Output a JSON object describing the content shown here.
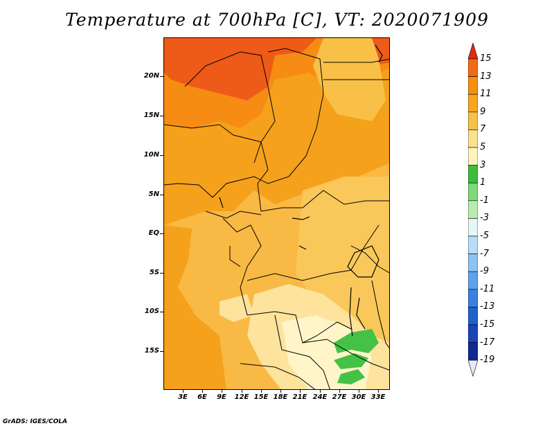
{
  "title": "Temperature at 700hPa [C], VT: 2020071909",
  "credit": "GrADS: IGES/COLA",
  "map": {
    "variable": "temperature",
    "level": "700hPa",
    "units": "C",
    "lon_range": [
      0,
      35
    ],
    "lat_range": [
      -20,
      25
    ],
    "lat_labels": [
      "20N",
      "15N",
      "10N",
      "5N",
      "EQ",
      "5S",
      "10S",
      "15S"
    ],
    "lon_labels": [
      "3E",
      "6E",
      "9E",
      "12E",
      "15E",
      "18E",
      "21E",
      "24E",
      "27E",
      "30E",
      "33E"
    ]
  },
  "colorbar": {
    "labels": [
      "15",
      "13",
      "11",
      "9",
      "7",
      "5",
      "3",
      "1",
      "-1",
      "-3",
      "-5",
      "-7",
      "-9",
      "-11",
      "-13",
      "-15",
      "-17",
      "-19"
    ],
    "colors": [
      "#e8451a",
      "#f26a14",
      "#f5900d",
      "#f7a623",
      "#f9c048",
      "#fce08e",
      "#fff3c0",
      "#3cbe3c",
      "#7fd97a",
      "#b7ecae",
      "#e4f7f4",
      "#b8def7",
      "#8cc2f3",
      "#5ea2ec",
      "#3b80e0",
      "#2160cf",
      "#1a44b8",
      "#0f2a95",
      "#0a0a6e"
    ],
    "top_color": "#dc2d14",
    "bottom_color": "#e8e8f8"
  }
}
